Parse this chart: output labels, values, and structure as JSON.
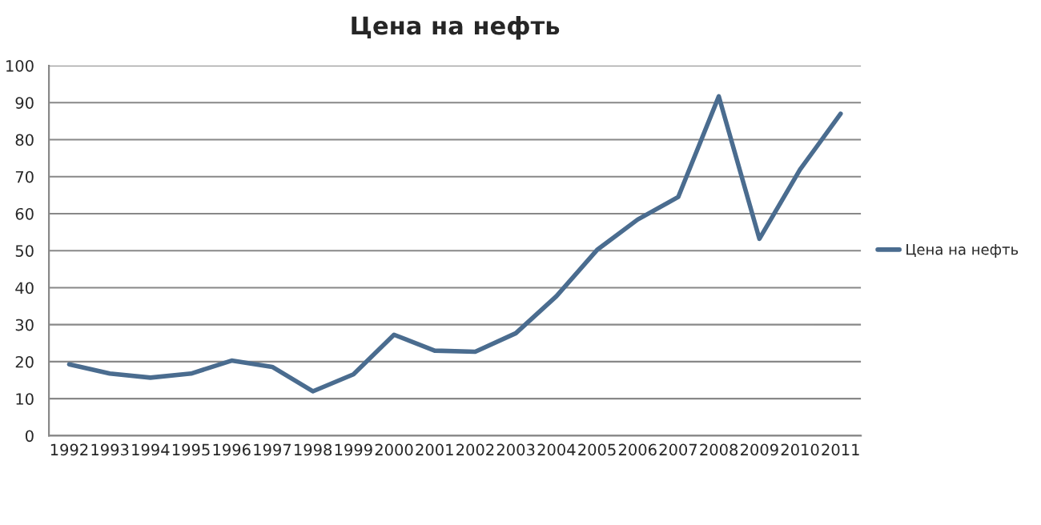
{
  "chart_data": {
    "type": "line",
    "title": "Цена на нефть",
    "categories": [
      "1992",
      "1993",
      "1994",
      "1995",
      "1996",
      "1997",
      "1998",
      "1999",
      "2000",
      "2001",
      "2002",
      "2003",
      "2004",
      "2005",
      "2006",
      "2007",
      "2008",
      "2009",
      "2010",
      "2011"
    ],
    "series": [
      {
        "name": "Цена на нефть",
        "color": "#4a6c8f",
        "values": [
          19.3,
          16.8,
          15.7,
          16.8,
          20.3,
          18.6,
          12.0,
          16.6,
          27.3,
          23.0,
          22.7,
          27.7,
          37.7,
          50.2,
          58.4,
          64.5,
          91.7,
          53.2,
          71.9,
          87.0
        ]
      }
    ],
    "ylim": [
      0,
      100
    ],
    "yticks": [
      0,
      10,
      20,
      30,
      40,
      50,
      60,
      70,
      80,
      90,
      100
    ],
    "grid": "y",
    "legend": "right",
    "marker": "none",
    "line_style": "solid"
  }
}
